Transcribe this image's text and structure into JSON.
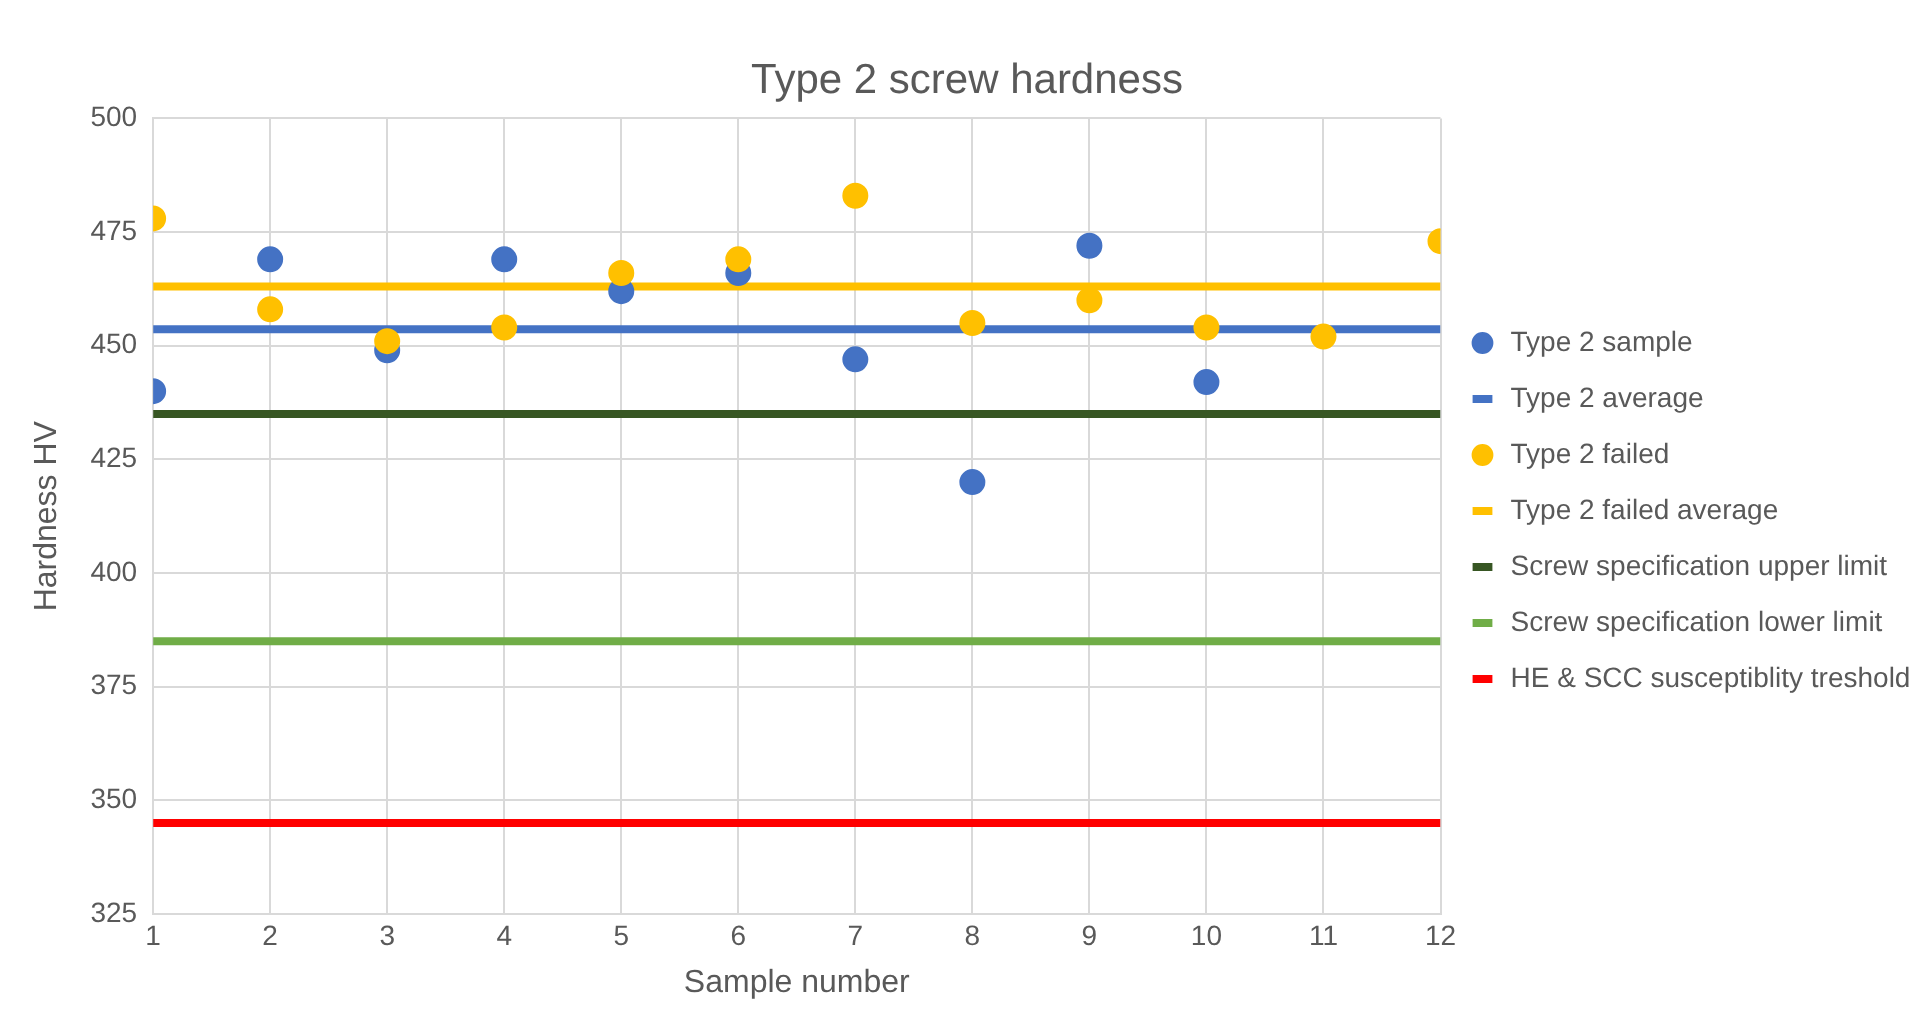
{
  "chart_data": {
    "type": "scatter",
    "title": "Type 2 screw hardness",
    "xlabel": "Sample number",
    "ylabel": "Hardness HV",
    "xlim": [
      1,
      12
    ],
    "xticks": [
      1,
      2,
      3,
      4,
      5,
      6,
      7,
      8,
      9,
      10,
      11,
      12
    ],
    "ylim": [
      325,
      500
    ],
    "yticks": [
      325,
      350,
      375,
      400,
      425,
      450,
      475,
      500
    ],
    "grid": true,
    "legend": "right",
    "series": [
      {
        "name": "Type 2 sample",
        "marker": "circle",
        "color": "#4472c4",
        "x": [
          1,
          2,
          3,
          4,
          5,
          6,
          7,
          8,
          9,
          10
        ],
        "values": [
          440,
          469,
          449,
          469,
          462,
          466,
          447,
          420,
          472,
          442
        ]
      },
      {
        "name": "Type 2 average",
        "type": "line",
        "color": "#4472c4",
        "x": [
          1,
          12
        ],
        "values": [
          453.6,
          453.6
        ]
      },
      {
        "name": "Type 2 failed",
        "marker": "circle",
        "color": "#ffc000",
        "x": [
          1,
          2,
          3,
          4,
          5,
          6,
          7,
          8,
          9,
          10,
          11,
          12
        ],
        "values": [
          478,
          458,
          451,
          454,
          466,
          469,
          483,
          455,
          460,
          454,
          452,
          473
        ]
      },
      {
        "name": "Type 2 failed average",
        "type": "line",
        "color": "#ffc000",
        "x": [
          1,
          12
        ],
        "values": [
          463,
          463
        ]
      },
      {
        "name": "Screw specification upper limit",
        "type": "line",
        "color": "#375623",
        "x": [
          1,
          12
        ],
        "values": [
          435,
          435
        ]
      },
      {
        "name": "Screw specification lower limit",
        "type": "line",
        "color": "#70ad47",
        "x": [
          1,
          12
        ],
        "values": [
          385,
          385
        ]
      },
      {
        "name": "HE & SCC susceptiblity treshold",
        "type": "line",
        "color": "#ff0000",
        "x": [
          1,
          12
        ],
        "values": [
          345,
          345
        ]
      }
    ]
  }
}
